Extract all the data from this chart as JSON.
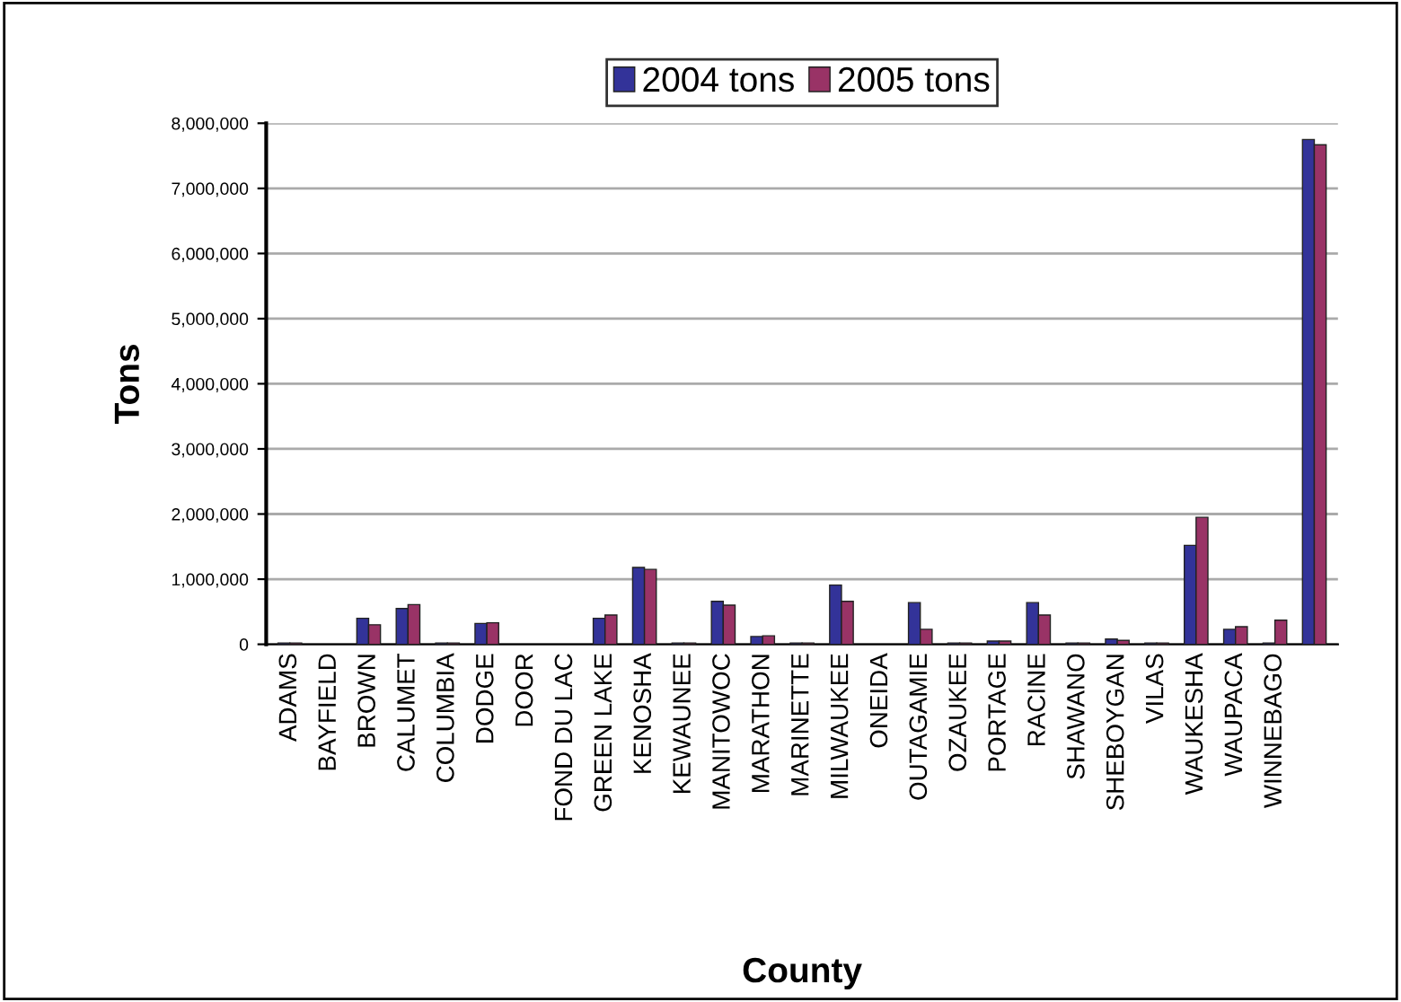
{
  "chart_data": {
    "type": "bar",
    "xlabel": "County",
    "ylabel": "Tons",
    "categories": [
      "ADAMS",
      "BAYFIELD",
      "BROWN",
      "CALUMET",
      "COLUMBIA",
      "DODGE",
      "DOOR",
      "FOND DU LAC",
      "GREEN LAKE",
      "KENOSHA",
      "KEWAUNEE",
      "MANITOWOC",
      "MARATHON",
      "MARINETTE",
      "MILWAUKEE",
      "ONEIDA",
      "OUTAGAMIE",
      "OZAUKEE",
      "PORTAGE",
      "RACINE",
      "SHAWANO",
      "SHEBOYGAN",
      "VILAS",
      "WAUKESHA",
      "WAUPACA",
      "WINNEBAGO",
      null
    ],
    "series": [
      {
        "name": "2004 tons",
        "color": "#333399",
        "values": [
          20000,
          null,
          400000,
          550000,
          20000,
          320000,
          null,
          null,
          400000,
          1180000,
          20000,
          660000,
          120000,
          20000,
          910000,
          null,
          640000,
          20000,
          50000,
          640000,
          20000,
          80000,
          20000,
          1520000,
          230000,
          20000,
          7750000
        ]
      },
      {
        "name": "2005 tons",
        "color": "#993366",
        "values": [
          20000,
          null,
          300000,
          610000,
          20000,
          330000,
          null,
          null,
          450000,
          1150000,
          20000,
          600000,
          130000,
          20000,
          660000,
          null,
          230000,
          20000,
          50000,
          450000,
          20000,
          60000,
          20000,
          1950000,
          270000,
          370000,
          7670000
        ]
      }
    ],
    "ylim": [
      0,
      8000000
    ],
    "yticks": [
      {
        "value": 0,
        "label": "0"
      },
      {
        "value": 1000000,
        "label": "1,000,000"
      },
      {
        "value": 2000000,
        "label": "2,000,000"
      },
      {
        "value": 3000000,
        "label": "3,000,000"
      },
      {
        "value": 4000000,
        "label": "4,000,000"
      },
      {
        "value": 5000000,
        "label": "5,000,000"
      },
      {
        "value": 6000000,
        "label": "6,000,000"
      },
      {
        "value": 7000000,
        "label": "7,000,000"
      },
      {
        "value": 8000000,
        "label": "8,000,000"
      }
    ],
    "grid": "y",
    "legend": "top"
  }
}
